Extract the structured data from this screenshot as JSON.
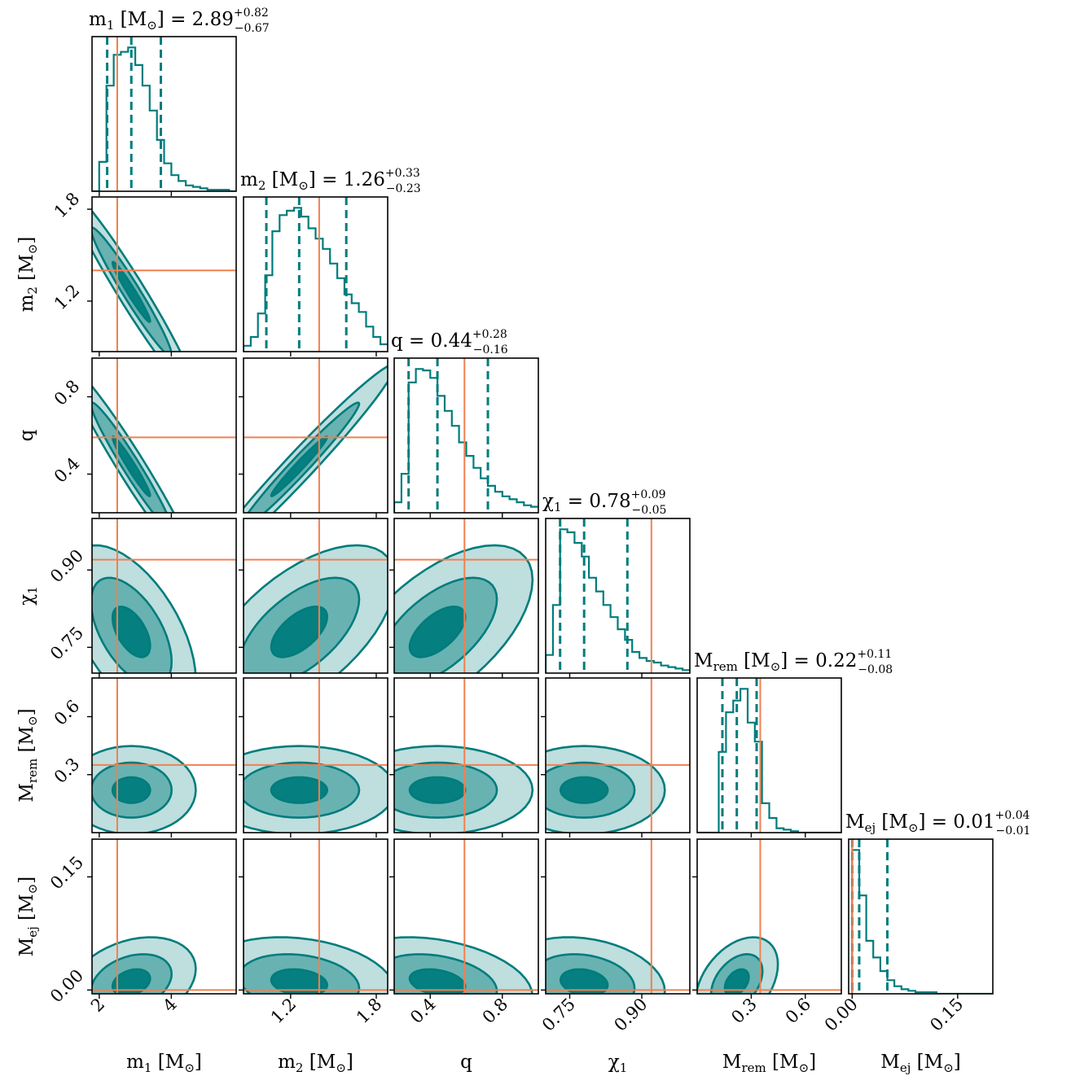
{
  "chart_data": {
    "type": "corner",
    "parameters": [
      {
        "id": "m1",
        "label": {
          "base": "m",
          "sub": "1",
          "unit": " [M",
          "unit_sub": "⊙",
          "unit_end": "]"
        },
        "title": {
          "prefix": " = ",
          "median": "2.89",
          "plus": "+0.82",
          "minus": "−0.67"
        },
        "range": [
          1.8,
          5.8
        ],
        "ticks": [
          2,
          4
        ],
        "tick_labels": [
          "2",
          "4"
        ],
        "truth": 2.5,
        "quantiles": [
          2.22,
          2.89,
          3.71
        ],
        "hist_edges_start": 1.8,
        "hist_bin_width": 0.2,
        "hist_counts": [
          0,
          20,
          72,
          93,
          95,
          98,
          86,
          72,
          55,
          35,
          19,
          11,
          7,
          4,
          3,
          2,
          1,
          1,
          1,
          0
        ]
      },
      {
        "id": "m2",
        "label": {
          "base": "m",
          "sub": "2",
          "unit": " [M",
          "unit_sub": "⊙",
          "unit_end": "]"
        },
        "title": {
          "prefix": " = ",
          "median": "1.26",
          "plus": "+0.33",
          "minus": "−0.23"
        },
        "range": [
          0.87,
          1.88
        ],
        "ticks": [
          1.2,
          1.8
        ],
        "tick_labels": [
          "1.2",
          "1.8"
        ],
        "truth": 1.4,
        "quantiles": [
          1.03,
          1.26,
          1.59
        ],
        "hist_edges_start": 0.87,
        "hist_bin_width": 0.0505,
        "hist_counts": [
          4,
          10,
          26,
          52,
          82,
          93,
          96,
          98,
          92,
          84,
          77,
          70,
          60,
          50,
          39,
          33,
          27,
          17,
          10,
          5
        ]
      },
      {
        "id": "q",
        "label": {
          "base": "q",
          "sub": "",
          "unit": "",
          "unit_sub": "",
          "unit_end": ""
        },
        "title": {
          "prefix": " = ",
          "median": "0.44",
          "plus": "+0.28",
          "minus": "−0.16"
        },
        "range": [
          0.2,
          1.0
        ],
        "ticks": [
          0.4,
          0.8
        ],
        "tick_labels": [
          "0.4",
          "0.8"
        ],
        "truth": 0.59,
        "quantiles": [
          0.28,
          0.44,
          0.72
        ],
        "hist_edges_start": 0.2,
        "hist_bin_width": 0.04,
        "hist_counts": [
          7,
          26,
          87,
          96,
          95,
          90,
          78,
          68,
          58,
          47,
          38,
          30,
          23,
          18,
          14,
          11,
          9,
          7,
          5,
          4
        ]
      },
      {
        "id": "chi1",
        "label": {
          "base": "χ",
          "sub": "1",
          "unit": "",
          "unit_sub": "",
          "unit_end": ""
        },
        "title": {
          "prefix": " = ",
          "median": "0.78",
          "plus": "+0.09",
          "minus": "−0.05"
        },
        "range": [
          0.7,
          1.0
        ],
        "ticks": [
          0.75,
          0.9
        ],
        "tick_labels": [
          "0.75",
          "0.90"
        ],
        "truth": 0.92,
        "quantiles": [
          0.73,
          0.78,
          0.87
        ],
        "hist_edges_start": 0.7,
        "hist_bin_width": 0.015,
        "hist_counts": [
          12,
          45,
          95,
          93,
          86,
          77,
          63,
          54,
          45,
          37,
          29,
          22,
          14,
          10,
          8,
          7,
          5,
          4,
          3,
          2
        ]
      },
      {
        "id": "mrem",
        "label": {
          "base": "M",
          "sub": "rem",
          "unit": " [M",
          "unit_sub": "⊙",
          "unit_end": "]"
        },
        "title": {
          "prefix": " = ",
          "median": "0.22",
          "plus": "+0.11",
          "minus": "−0.08"
        },
        "range": [
          0.0,
          0.8
        ],
        "ticks": [
          0.3,
          0.6
        ],
        "tick_labels": [
          "0.3",
          "0.6"
        ],
        "truth": 0.35,
        "quantiles": [
          0.14,
          0.22,
          0.33
        ],
        "hist_edges_start": 0.0,
        "hist_bin_width": 0.04,
        "hist_counts": [
          0,
          0,
          0,
          55,
          82,
          90,
          98,
          75,
          62,
          20,
          10,
          3,
          2,
          1,
          0,
          0,
          0,
          0,
          0,
          0
        ]
      },
      {
        "id": "mej",
        "label": {
          "base": "M",
          "sub": "ej",
          "unit": " [M",
          "unit_sub": "⊙",
          "unit_end": "]"
        },
        "title": {
          "prefix": " = ",
          "median": "0.01",
          "plus": "+0.04",
          "minus": "−0.01"
        },
        "range": [
          -0.005,
          0.2
        ],
        "ticks": [
          0.0,
          0.15
        ],
        "tick_labels": [
          "0.00",
          "0.15"
        ],
        "truth": 0.0,
        "quantiles": [
          0.0,
          0.01,
          0.05
        ],
        "hist_edges_start": 0.0,
        "hist_bin_width": 0.01,
        "hist_counts": [
          95,
          65,
          35,
          24,
          15,
          9,
          5,
          3,
          2,
          1,
          1,
          1,
          0,
          0,
          0,
          0,
          0,
          0,
          0,
          0
        ]
      }
    ],
    "colors": {
      "posterior": "#007c7c",
      "truth": "#f08050",
      "axes": "#000000"
    }
  }
}
